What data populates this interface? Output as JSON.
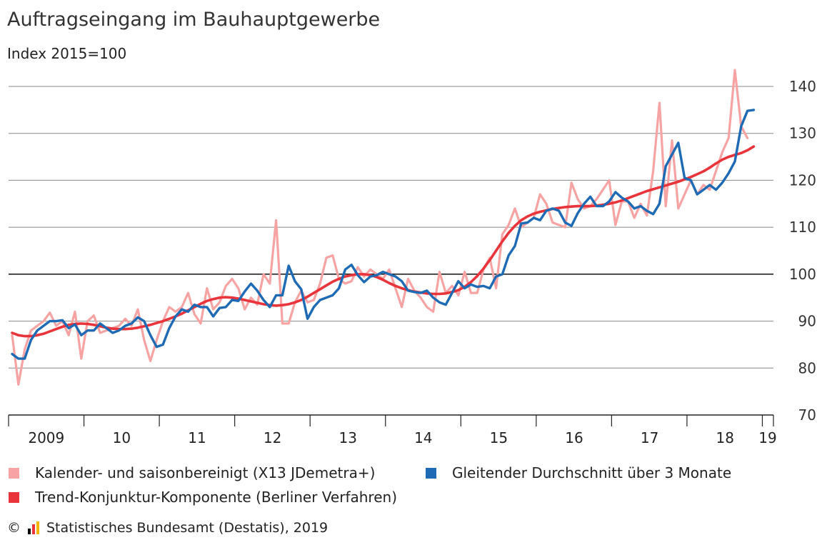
{
  "title": "Auftragseingang im Bauhauptgewerbe",
  "subtitle": "Index 2015=100",
  "source": "Statistisches Bundesamt (Destatis), 2019",
  "copyright": "©",
  "colors": {
    "series_seasonal": "#f7a3a3",
    "series_moving": "#1f6ab5",
    "series_trend": "#e8343a",
    "grid": "#888888",
    "baseline": "#222222"
  },
  "chart_data": {
    "type": "line",
    "ylim": [
      70,
      143
    ],
    "yticks": [
      70,
      80,
      90,
      100,
      110,
      120,
      130,
      140
    ],
    "x_start": "2009-01",
    "year_labels": [
      "2009",
      "10",
      "11",
      "12",
      "13",
      "14",
      "15",
      "16",
      "17",
      "18",
      "19"
    ],
    "legend_placement": "bottom",
    "series": [
      {
        "name": "Kalender- und saisonbereinigt (X13 JDemetra+)",
        "key": "seasonal",
        "values": [
          87,
          76.5,
          84,
          88,
          89,
          90,
          91.8,
          89,
          90,
          87,
          92,
          82,
          90,
          91.2,
          87.5,
          88,
          88.5,
          89,
          90.5,
          89,
          92.5,
          86,
          81.5,
          86,
          90,
          93,
          92,
          93,
          96,
          91.5,
          89.5,
          97,
          92.5,
          94,
          97.5,
          99,
          97,
          92.5,
          95,
          93.5,
          100,
          98,
          111.5,
          89.5,
          89.5,
          94,
          96.5,
          94,
          94.5,
          98,
          103.5,
          104,
          99,
          98,
          98.5,
          101.5,
          99.5,
          101,
          100,
          99,
          101,
          97,
          93,
          99,
          96.5,
          95,
          93,
          92,
          100.5,
          96,
          97.5,
          95.5,
          100.5,
          96,
          96,
          101,
          103.5,
          97,
          108.5,
          110.5,
          114,
          110,
          111,
          112,
          117,
          115,
          111,
          110.5,
          110,
          119.5,
          116,
          114,
          114.5,
          116,
          118,
          120,
          110.5,
          115.5,
          115.5,
          112,
          115,
          112.5,
          122,
          136.5,
          114.5,
          128.5,
          114,
          117,
          120,
          117,
          119,
          118,
          122,
          126,
          129,
          143.5,
          131.5,
          129
        ]
      },
      {
        "name": "Gleitender Durchschnitt über 3 Monate",
        "key": "moving",
        "values": [
          83,
          82,
          82,
          86,
          88,
          89,
          90,
          90,
          90.2,
          88.5,
          89.3,
          87,
          88,
          88,
          89.5,
          88.5,
          87.5,
          88,
          89,
          89.5,
          90.8,
          90,
          87,
          84.5,
          85,
          88.5,
          91,
          92.5,
          92,
          93.5,
          93,
          93,
          91,
          92.8,
          93,
          94.5,
          94.3,
          96.3,
          98,
          96.5,
          94.5,
          93,
          95.5,
          95.5,
          101.8,
          98.5,
          96.8,
          90.5,
          93,
          94.5,
          95,
          95.5,
          97,
          101,
          102,
          99.8,
          98.3,
          99.5,
          99.8,
          100.5,
          100,
          99.5,
          98.5,
          96.5,
          96.2,
          96,
          96.5,
          95,
          94,
          93.5,
          96,
          98.5,
          97,
          97.8,
          97.3,
          97.5,
          97,
          99.5,
          100,
          104,
          106,
          110.8,
          111,
          112,
          111.5,
          113.5,
          114,
          113.5,
          111,
          110.3,
          113,
          115,
          116.5,
          114.5,
          114.5,
          115.5,
          117.5,
          116.3,
          115.5,
          114,
          114.5,
          113.5,
          112.8,
          115,
          123,
          125.5,
          128,
          120.5,
          120,
          117,
          118,
          119,
          118,
          119.5,
          121.5,
          124,
          131.5,
          134.8,
          135
        ]
      },
      {
        "name": "Trend-Konjunktur-Komponente (Berliner Verfahren)",
        "key": "trend",
        "values": [
          87.5,
          87,
          86.8,
          86.8,
          87,
          87.3,
          87.8,
          88.3,
          88.8,
          89.2,
          89.4,
          89.5,
          89.4,
          89.2,
          88.9,
          88.6,
          88.4,
          88.3,
          88.3,
          88.4,
          88.6,
          88.9,
          89.2,
          89.6,
          90,
          90.5,
          91,
          91.6,
          92.3,
          93,
          93.7,
          94.3,
          94.7,
          95,
          95.1,
          95,
          94.8,
          94.5,
          94.2,
          93.9,
          93.6,
          93.4,
          93.3,
          93.4,
          93.6,
          94,
          94.5,
          95.2,
          96,
          96.8,
          97.6,
          98.4,
          99,
          99.5,
          99.8,
          100,
          100,
          99.8,
          99.4,
          98.8,
          98.1,
          97.5,
          97,
          96.6,
          96.3,
          96.1,
          95.9,
          95.8,
          95.8,
          95.9,
          96.2,
          96.6,
          97.3,
          98.3,
          99.6,
          101.2,
          103,
          105,
          107,
          108.8,
          110.3,
          111.5,
          112.3,
          112.9,
          113.3,
          113.6,
          113.9,
          114.1,
          114.3,
          114.4,
          114.5,
          114.5,
          114.5,
          114.6,
          114.8,
          115,
          115.3,
          115.7,
          116.2,
          116.7,
          117.2,
          117.7,
          118.1,
          118.5,
          118.9,
          119.3,
          119.7,
          120.2,
          120.7,
          121.3,
          121.9,
          122.7,
          123.6,
          124.4,
          125,
          125.4,
          125.8,
          126.4,
          127.2
        ]
      }
    ]
  }
}
